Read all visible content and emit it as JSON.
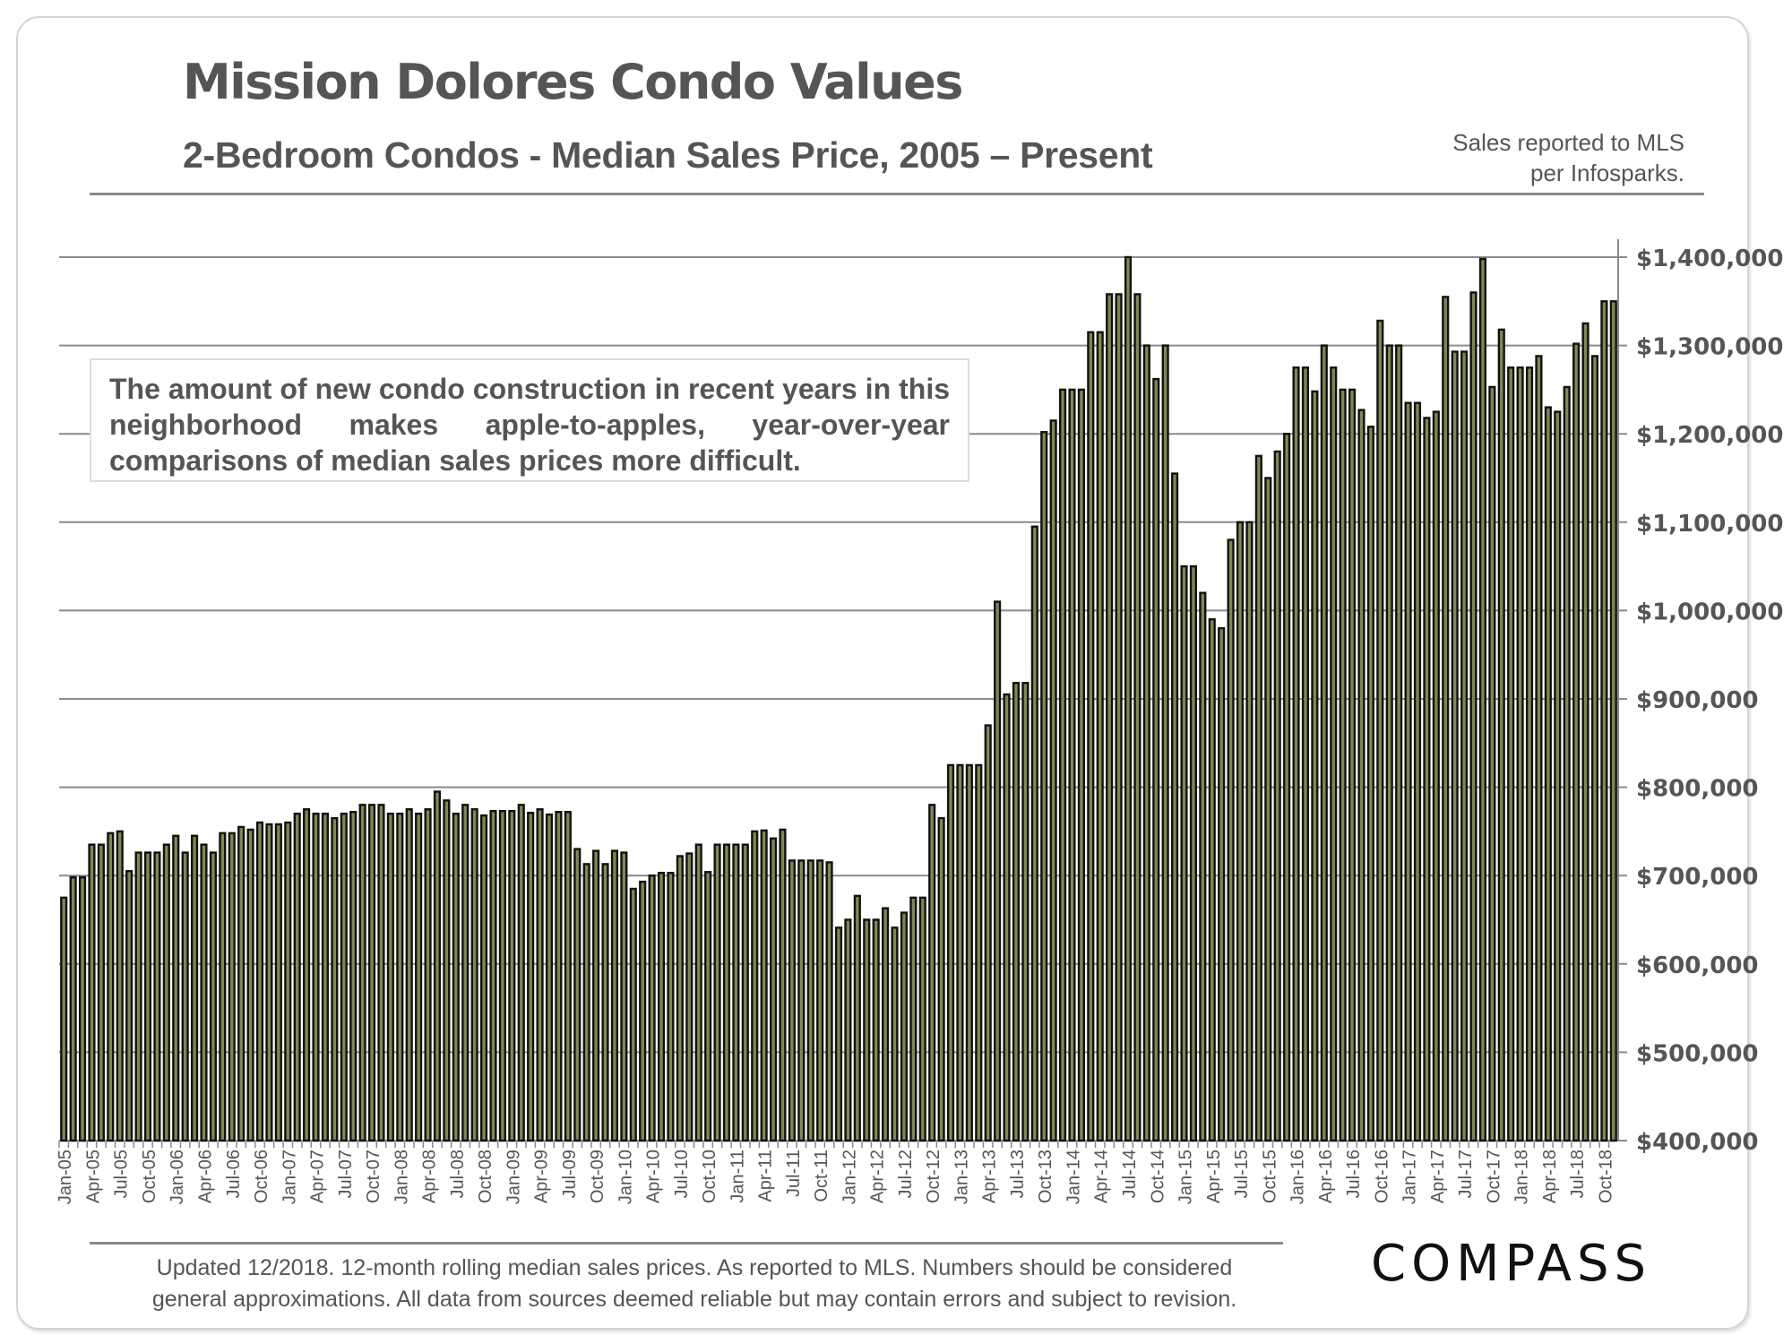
{
  "header": {
    "title": "Mission Dolores Condo Values",
    "subtitle": "2-Bedroom Condos - Median Sales Price, 2005 – Present",
    "source_line1": "Sales reported to MLS",
    "source_line2": "per Infosparks."
  },
  "annotation": "The amount of new condo construction in recent years in this neighborhood makes apple-to-apples, year-over-year comparisons of median sales prices more difficult.",
  "footer": {
    "line1": "Updated 12/2018. 12-month rolling median sales prices. As reported to MLS. Numbers should be considered",
    "line2": "general approximations. All data from sources deemed reliable but may contain errors and subject to revision.",
    "logo": "COMPASS"
  },
  "colors": {
    "bar_fill": "#7d8a4e",
    "bar_stroke": "#111111",
    "grid": "#8a8a8a",
    "text": "#555555"
  },
  "chart_data": {
    "type": "bar",
    "title": "2-Bedroom Condos - Median Sales Price, 2005 – Present",
    "xlabel": "",
    "ylabel": "",
    "ylim": [
      400000,
      1400000
    ],
    "yticks": [
      400000,
      500000,
      600000,
      700000,
      800000,
      900000,
      1000000,
      1100000,
      1200000,
      1300000,
      1400000
    ],
    "ytick_labels": [
      "$400,000",
      "$500,000",
      "$600,000",
      "$700,000",
      "$800,000",
      "$900,000",
      "$1,000,000",
      "$1,100,000",
      "$1,200,000",
      "$1,300,000",
      "$1,400,000"
    ],
    "y_axis_side": "right",
    "grid": true,
    "legend": "none",
    "xtick_labels": [
      "Jan-05",
      "Apr-05",
      "Jul-05",
      "Oct-05",
      "Jan-06",
      "Apr-06",
      "Jul-06",
      "Oct-06",
      "Jan-07",
      "Apr-07",
      "Jul-07",
      "Oct-07",
      "Jan-08",
      "Apr-08",
      "Jul-08",
      "Oct-08",
      "Jan-09",
      "Apr-09",
      "Jul-09",
      "Oct-09",
      "Jan-10",
      "Apr-10",
      "Jul-10",
      "Oct-10",
      "Jan-11",
      "Apr-11",
      "Jul-11",
      "Oct-11",
      "Jan-12",
      "Apr-12",
      "Jul-12",
      "Oct-12",
      "Jan-13",
      "Apr-13",
      "Jul-13",
      "Oct-13",
      "Jan-14",
      "Apr-14",
      "Jul-14",
      "Oct-14",
      "Jan-15",
      "Apr-15",
      "Jul-15",
      "Oct-15",
      "Jan-16",
      "Apr-16",
      "Jul-16",
      "Oct-16",
      "Jan-17",
      "Apr-17",
      "Jul-17",
      "Oct-17",
      "Jan-18",
      "Apr-18",
      "Jul-18",
      "Oct-18"
    ],
    "series": [
      {
        "name": "Median Sales Price",
        "start": "Jan-05",
        "frequency": "monthly",
        "values": [
          675000,
          698000,
          698000,
          735000,
          735000,
          748000,
          750000,
          705000,
          726000,
          726000,
          726000,
          735000,
          745000,
          726000,
          745000,
          735000,
          726000,
          748000,
          748000,
          755000,
          752000,
          760000,
          758000,
          758000,
          760000,
          770000,
          775000,
          770000,
          770000,
          765000,
          770000,
          772000,
          780000,
          780000,
          780000,
          770000,
          770000,
          775000,
          770000,
          775000,
          795000,
          785000,
          770000,
          780000,
          775000,
          768000,
          773000,
          773000,
          773000,
          780000,
          771000,
          775000,
          769000,
          772000,
          772000,
          730000,
          713000,
          728000,
          713000,
          728000,
          726000,
          685000,
          693000,
          700000,
          703000,
          703000,
          722000,
          725000,
          735000,
          704000,
          735000,
          735000,
          735000,
          735000,
          750000,
          751000,
          742000,
          752000,
          717000,
          717000,
          717000,
          717000,
          715000,
          641000,
          650000,
          677000,
          650000,
          650000,
          663000,
          641000,
          658000,
          675000,
          675000,
          780000,
          765000,
          825000,
          825000,
          825000,
          825000,
          870000,
          1010000,
          905000,
          918000,
          918000,
          1095000,
          1202000,
          1215000,
          1250000,
          1250000,
          1250000,
          1315000,
          1315000,
          1358000,
          1358000,
          1400000,
          1358000,
          1300000,
          1262000,
          1300000,
          1155000,
          1050000,
          1050000,
          1020000,
          990000,
          980000,
          1080000,
          1100000,
          1100000,
          1175000,
          1150000,
          1180000,
          1200000,
          1275000,
          1275000,
          1248000,
          1300000,
          1275000,
          1250000,
          1250000,
          1227000,
          1208000,
          1328000,
          1300000,
          1300000,
          1235000,
          1235000,
          1218000,
          1225000,
          1355000,
          1293000,
          1293000,
          1360000,
          1398000,
          1253000,
          1318000,
          1275000,
          1275000,
          1275000,
          1288000,
          1230000,
          1225000,
          1253000,
          1302000,
          1325000,
          1288000,
          1350000,
          1350000
        ]
      }
    ]
  }
}
